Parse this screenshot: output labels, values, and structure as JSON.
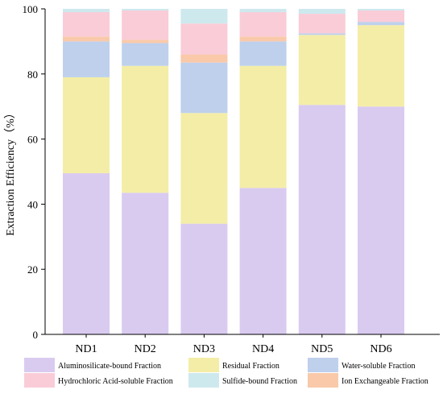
{
  "chart_data": {
    "type": "bar",
    "stacked": true,
    "title": "",
    "xlabel": "",
    "ylabel": "Extraction Efficiency（%）",
    "ylim": [
      0,
      100
    ],
    "yticks": [
      0,
      20,
      40,
      60,
      80,
      100
    ],
    "grid": false,
    "legend_position": "bottom",
    "categories": [
      "ND1",
      "ND2",
      "ND3",
      "ND4",
      "ND5",
      "ND6"
    ],
    "series": [
      {
        "name": "Aluminosilicate-bound Fraction",
        "color": "#d9cbf0",
        "values": [
          49.5,
          43.5,
          34.0,
          45.0,
          70.5,
          70.0
        ]
      },
      {
        "name": "Residual Fraction",
        "color": "#f4eda7",
        "values": [
          29.5,
          39.0,
          34.0,
          37.5,
          21.5,
          25.0
        ]
      },
      {
        "name": "Water-soluble Fraction",
        "color": "#bed0ec",
        "values": [
          11.0,
          7.0,
          15.5,
          7.5,
          0.5,
          1.0
        ]
      },
      {
        "name": "Ion Exchangeable Fraction",
        "color": "#f9c9aa",
        "values": [
          1.5,
          1.0,
          2.5,
          1.5,
          0.0,
          0.0
        ]
      },
      {
        "name": "Hydrochloric Acid-soluble Fraction",
        "color": "#f9ccd8",
        "values": [
          7.5,
          9.0,
          9.5,
          7.5,
          6.0,
          3.5
        ]
      },
      {
        "name": "Sulfide-bound Fraction",
        "color": "#cde9ee",
        "values": [
          1.0,
          0.5,
          4.5,
          1.0,
          1.5,
          0.5
        ]
      }
    ],
    "legend": [
      {
        "label": "Aluminosilicate-bound Fraction",
        "color": "#d9cbf0"
      },
      {
        "label": "Residual Fraction",
        "color": "#f4eda7"
      },
      {
        "label": "Water-soluble Fraction",
        "color": "#bed0ec"
      },
      {
        "label": "Hydrochloric Acid-soluble Fraction",
        "color": "#f9ccd8"
      },
      {
        "label": "Sulfide-bound Fraction",
        "color": "#cde9ee"
      },
      {
        "label": "Ion Exchangeable Fraction",
        "color": "#f9c9aa"
      }
    ]
  }
}
